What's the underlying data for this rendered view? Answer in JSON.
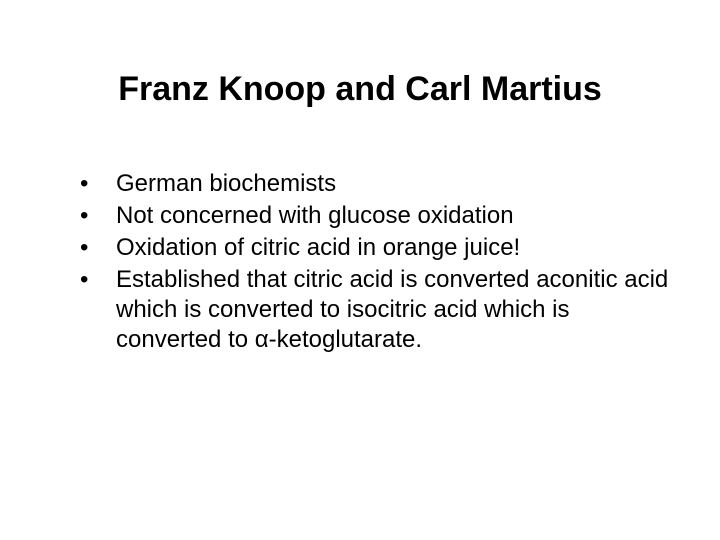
{
  "slide": {
    "title": "Franz Knoop and Carl Martius",
    "bullets": [
      "German biochemists",
      "Not concerned with glucose oxidation",
      "Oxidation of citric acid in orange juice!",
      "Established that citric acid is converted aconitic acid which is converted to isocitric acid which is converted to α-ketoglutarate."
    ],
    "title_fontsize": 34,
    "body_fontsize": 24,
    "text_color": "#000000",
    "background_color": "#ffffff",
    "font_family": "Arial"
  }
}
